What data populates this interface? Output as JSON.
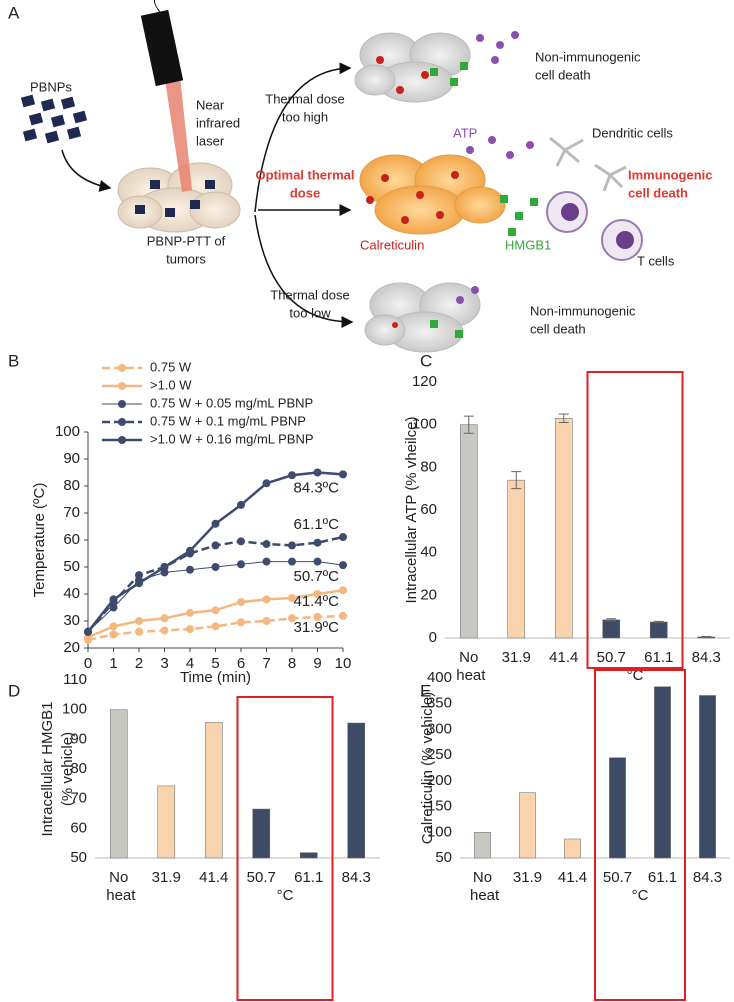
{
  "diagram": {
    "panel": "A",
    "pbnps": "PBNPs",
    "laser": [
      "Near",
      "infrared",
      "laser"
    ],
    "treatment": [
      "PBNP-PTT of",
      "tumors"
    ],
    "high": [
      "Thermal dose",
      "too high"
    ],
    "optimal": [
      "Optimal thermal",
      "dose"
    ],
    "low": [
      "Thermal dose",
      "too low"
    ],
    "outcome_high": [
      "Non-immunogenic",
      "cell death"
    ],
    "atp": "ATP",
    "dendritic": "Dendritic cells",
    "immunogenic": [
      "Immunogenic",
      "cell death"
    ],
    "calreticulin": "Calreticulin",
    "hmgb1": "HMGB1",
    "tcells": "T cells",
    "outcome_low": [
      "Non-immunogenic",
      "cell death"
    ]
  },
  "chart_data": [
    {
      "type": "line",
      "panel": "B",
      "xlabel": "Time (min)",
      "ylabel": "Temperature (ºC)",
      "x": [
        0,
        1,
        2,
        3,
        4,
        5,
        6,
        7,
        8,
        9,
        10
      ],
      "xlim": [
        0,
        10
      ],
      "xticks": [
        0,
        1,
        2,
        3,
        4,
        5,
        6,
        7,
        8,
        9,
        10
      ],
      "ylim": [
        20,
        100
      ],
      "yticks": [
        20,
        30,
        40,
        50,
        60,
        70,
        80,
        90,
        100
      ],
      "series": [
        {
          "name": "0.75 W",
          "color": "#f4b77e",
          "dashed": true,
          "width": 2.5,
          "values": [
            23,
            25,
            26,
            26.5,
            27,
            28,
            29.5,
            30,
            31,
            31.5,
            31.9
          ]
        },
        {
          "name": ">1.0 W",
          "color": "#f4b77e",
          "dashed": false,
          "width": 2.5,
          "values": [
            24,
            28,
            30,
            31,
            33,
            34,
            37,
            38,
            38.5,
            40,
            41.4
          ]
        },
        {
          "name": "0.75 W + 0.05 mg/mL PBNP",
          "color": "#3d4b6e",
          "dashed": false,
          "width": 1,
          "values": [
            26,
            35,
            45,
            48,
            49,
            50,
            51,
            52,
            52,
            52,
            50.7
          ]
        },
        {
          "name": "0.75 W + 0.1 mg/mL PBNP",
          "color": "#3d4b6e",
          "dashed": true,
          "width": 2.5,
          "values": [
            26,
            37,
            47,
            50,
            55,
            58,
            59.5,
            58.5,
            58,
            59,
            61.1
          ]
        },
        {
          "name": ">1.0 W + 0.16 mg/mL PBNP",
          "color": "#3d4b6e",
          "dashed": false,
          "width": 2.5,
          "values": [
            26,
            38,
            44,
            50,
            56,
            66,
            73,
            81,
            84,
            85,
            84.3
          ]
        }
      ],
      "annotations": [
        "31.9ºC",
        "41.4ºC",
        "50.7ºC",
        "61.1ºC",
        "84.3ºC"
      ]
    },
    {
      "type": "bar",
      "panel": "C",
      "ylabel": [
        "Intracellular ATP (% vheilce)"
      ],
      "xunit": "°C",
      "categories": [
        "No heat",
        "31.9",
        "41.4",
        "50.7",
        "61.1",
        "84.3"
      ],
      "values": [
        100,
        74,
        103,
        8.5,
        7.5,
        0.5
      ],
      "errors": [
        4,
        4,
        2,
        0.5,
        0.3,
        0.2
      ],
      "colors": [
        "#c8c8c3",
        "#f8d3ad",
        "#f8d3ad",
        "#3d4b66",
        "#3d4b66",
        "#3d4b66"
      ],
      "ylim": [
        0,
        120
      ],
      "yticks": [
        0,
        20,
        40,
        60,
        80,
        100,
        120
      ]
    },
    {
      "type": "bar",
      "panel": "D",
      "ylabel": [
        "Intracellular HMGB1",
        "(% vehicle)"
      ],
      "xunit": "°C",
      "categories": [
        "No heat",
        "31.9",
        "41.4",
        "50.7",
        "61.1",
        "84.3"
      ],
      "values": [
        100,
        74.3,
        95.7,
        66.5,
        51.8,
        95.5
      ],
      "colors": [
        "#c8c8c3",
        "#f8d3ad",
        "#f8d3ad",
        "#3d4b66",
        "#3d4b66",
        "#3d4b66"
      ],
      "ylim": [
        50,
        110
      ],
      "yticks": [
        50,
        60,
        70,
        80,
        90,
        100,
        110
      ]
    },
    {
      "type": "bar",
      "panel": "E",
      "ylabel": [
        "Calreticulin (% vehicle)"
      ],
      "xunit": "°C",
      "categories": [
        "No heat",
        "31.9",
        "41.4",
        "50.7",
        "61.1",
        "84.3"
      ],
      "values": [
        100,
        177,
        87,
        245,
        383,
        366
      ],
      "colors": [
        "#c8c8c3",
        "#f8d3ad",
        "#f8d3ad",
        "#3d4b66",
        "#3d4b66",
        "#3d4b66"
      ],
      "ylim": [
        50,
        400
      ],
      "yticks": [
        50,
        100,
        150,
        200,
        250,
        300,
        350,
        400
      ]
    }
  ]
}
